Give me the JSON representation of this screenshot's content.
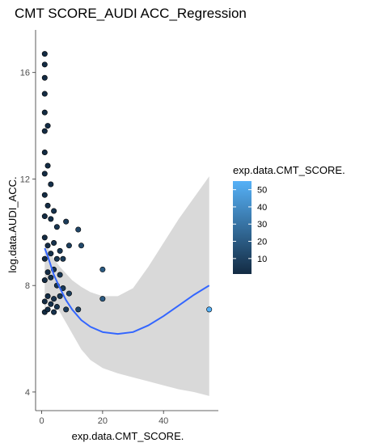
{
  "chart_data": {
    "type": "scatter",
    "title": "CMT SCORE_AUDI ACC_Regression",
    "xlabel": "exp.data.CMT_SCORE.",
    "ylabel": "log.data.AUDI_ACC.",
    "xlim": [
      -2,
      58
    ],
    "ylim": [
      3.3,
      17.6
    ],
    "x_ticks": [
      0,
      20,
      40
    ],
    "y_ticks": [
      4,
      8,
      12,
      16
    ],
    "grid": false,
    "legend": {
      "title": "exp.data.CMT_SCORE.",
      "ticks": [
        10,
        20,
        30,
        40,
        50
      ],
      "range": [
        1,
        55
      ],
      "placement": "right",
      "color_low": "#132B43",
      "color_high": "#56B1F7"
    },
    "points": [
      {
        "x": 1,
        "y": 16.7
      },
      {
        "x": 1,
        "y": 16.3
      },
      {
        "x": 1,
        "y": 15.8
      },
      {
        "x": 1,
        "y": 15.2
      },
      {
        "x": 1,
        "y": 14.5
      },
      {
        "x": 1,
        "y": 13.8
      },
      {
        "x": 1,
        "y": 13.0
      },
      {
        "x": 1,
        "y": 12.2
      },
      {
        "x": 1,
        "y": 11.4
      },
      {
        "x": 1,
        "y": 10.6
      },
      {
        "x": 1,
        "y": 9.8
      },
      {
        "x": 1,
        "y": 9.0
      },
      {
        "x": 1,
        "y": 8.2
      },
      {
        "x": 1,
        "y": 7.4
      },
      {
        "x": 1,
        "y": 7.0
      },
      {
        "x": 2,
        "y": 14.0
      },
      {
        "x": 2,
        "y": 12.5
      },
      {
        "x": 2,
        "y": 11.0
      },
      {
        "x": 2,
        "y": 9.5
      },
      {
        "x": 2,
        "y": 8.5
      },
      {
        "x": 2,
        "y": 7.6
      },
      {
        "x": 2,
        "y": 7.1
      },
      {
        "x": 3,
        "y": 11.8
      },
      {
        "x": 3,
        "y": 10.5
      },
      {
        "x": 3,
        "y": 9.2
      },
      {
        "x": 3,
        "y": 8.3
      },
      {
        "x": 3,
        "y": 7.3
      },
      {
        "x": 4,
        "y": 10.8
      },
      {
        "x": 4,
        "y": 9.6
      },
      {
        "x": 4,
        "y": 8.6
      },
      {
        "x": 4,
        "y": 7.5
      },
      {
        "x": 4,
        "y": 7.0
      },
      {
        "x": 5,
        "y": 10.2
      },
      {
        "x": 5,
        "y": 9.0
      },
      {
        "x": 5,
        "y": 8.0
      },
      {
        "x": 5,
        "y": 7.2
      },
      {
        "x": 6,
        "y": 9.3
      },
      {
        "x": 6,
        "y": 8.4
      },
      {
        "x": 6,
        "y": 7.6
      },
      {
        "x": 7,
        "y": 9.0
      },
      {
        "x": 7,
        "y": 7.9
      },
      {
        "x": 8,
        "y": 10.4
      },
      {
        "x": 8,
        "y": 7.1
      },
      {
        "x": 9,
        "y": 9.5
      },
      {
        "x": 9,
        "y": 7.7
      },
      {
        "x": 12,
        "y": 10.1
      },
      {
        "x": 12,
        "y": 7.1
      },
      {
        "x": 13,
        "y": 9.5
      },
      {
        "x": 20,
        "y": 8.6
      },
      {
        "x": 20,
        "y": 7.5
      },
      {
        "x": 55,
        "y": 7.1
      }
    ],
    "fit": [
      {
        "x": 1,
        "y": 9.4,
        "lower": 7.1,
        "upper": 9.6
      },
      {
        "x": 2,
        "y": 9.1,
        "lower": 7.4,
        "upper": 9.4
      },
      {
        "x": 4,
        "y": 8.4,
        "lower": 7.3,
        "upper": 9.0
      },
      {
        "x": 6,
        "y": 7.9,
        "lower": 7.0,
        "upper": 8.7
      },
      {
        "x": 8,
        "y": 7.45,
        "lower": 6.6,
        "upper": 8.45
      },
      {
        "x": 10,
        "y": 7.1,
        "lower": 6.2,
        "upper": 8.2
      },
      {
        "x": 13,
        "y": 6.7,
        "lower": 5.6,
        "upper": 7.95
      },
      {
        "x": 16,
        "y": 6.45,
        "lower": 5.2,
        "upper": 7.75
      },
      {
        "x": 20,
        "y": 6.25,
        "lower": 4.9,
        "upper": 7.6
      },
      {
        "x": 25,
        "y": 6.18,
        "lower": 4.7,
        "upper": 7.6
      },
      {
        "x": 30,
        "y": 6.25,
        "lower": 4.55,
        "upper": 7.9
      },
      {
        "x": 35,
        "y": 6.5,
        "lower": 4.4,
        "upper": 8.7
      },
      {
        "x": 40,
        "y": 6.85,
        "lower": 4.25,
        "upper": 9.6
      },
      {
        "x": 45,
        "y": 7.25,
        "lower": 4.1,
        "upper": 10.5
      },
      {
        "x": 50,
        "y": 7.65,
        "lower": 4.0,
        "upper": 11.3
      },
      {
        "x": 55,
        "y": 8.0,
        "lower": 3.85,
        "upper": 12.1
      }
    ]
  }
}
